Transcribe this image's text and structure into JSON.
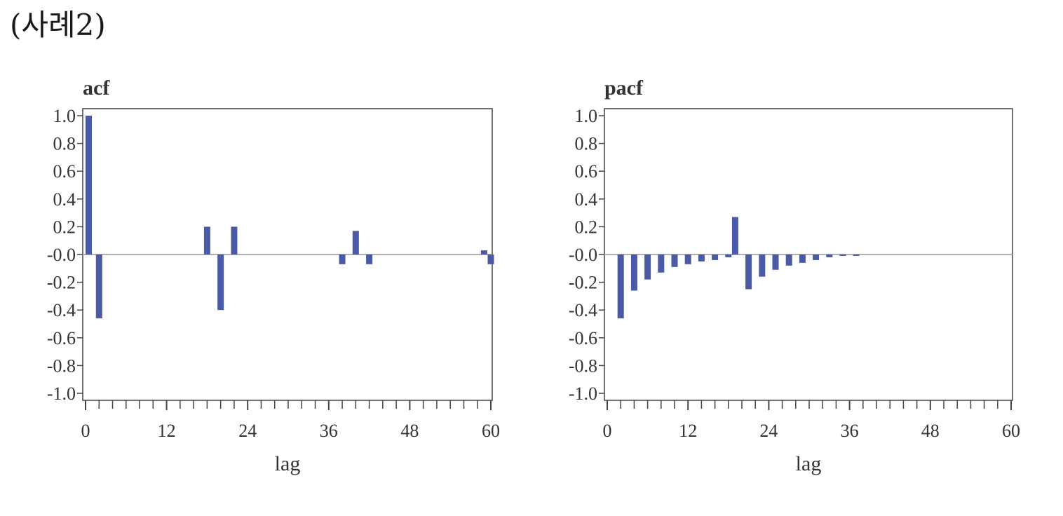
{
  "page": {
    "heading": "(사례2)"
  },
  "colors": {
    "bar": "#4a5aa6",
    "axis": "#444444",
    "zero_line": "#b0b0b0"
  },
  "chart_data": [
    {
      "type": "bar",
      "title": "acf",
      "xlabel": "lag",
      "ylabel": "",
      "ylim": [
        -1.0,
        1.0
      ],
      "xlim": [
        0,
        60
      ],
      "grid": false,
      "yticks": [
        "1.0",
        "0.8",
        "0.6",
        "0.4",
        "0.2",
        "-0.0",
        "-0.2",
        "-0.4",
        "-0.6",
        "-0.8",
        "-1.0"
      ],
      "xticks": [
        "0",
        "12",
        "24",
        "36",
        "48",
        "60"
      ],
      "x": [
        0,
        2,
        18,
        20,
        22,
        38,
        40,
        42,
        59,
        60
      ],
      "values": [
        1.0,
        -0.46,
        0.2,
        -0.4,
        0.2,
        -0.07,
        0.17,
        -0.07,
        0.03,
        -0.07
      ]
    },
    {
      "type": "bar",
      "title": "pacf",
      "xlabel": "lag",
      "ylabel": "",
      "ylim": [
        -1.0,
        1.0
      ],
      "xlim": [
        0,
        60
      ],
      "grid": false,
      "yticks": [
        "1.0",
        "0.8",
        "0.6",
        "0.4",
        "0.2",
        "-0.0",
        "-0.2",
        "-0.4",
        "-0.6",
        "-0.8",
        "-1.0"
      ],
      "xticks": [
        "0",
        "12",
        "24",
        "36",
        "48",
        "60"
      ],
      "x": [
        2,
        4,
        6,
        8,
        10,
        12,
        14,
        16,
        18,
        19,
        21,
        23,
        25,
        27,
        29,
        31,
        33,
        35,
        37
      ],
      "values": [
        -0.46,
        -0.26,
        -0.18,
        -0.13,
        -0.09,
        -0.07,
        -0.05,
        -0.04,
        -0.02,
        0.27,
        -0.25,
        -0.16,
        -0.11,
        -0.08,
        -0.06,
        -0.04,
        -0.02,
        -0.01,
        -0.01
      ]
    }
  ]
}
